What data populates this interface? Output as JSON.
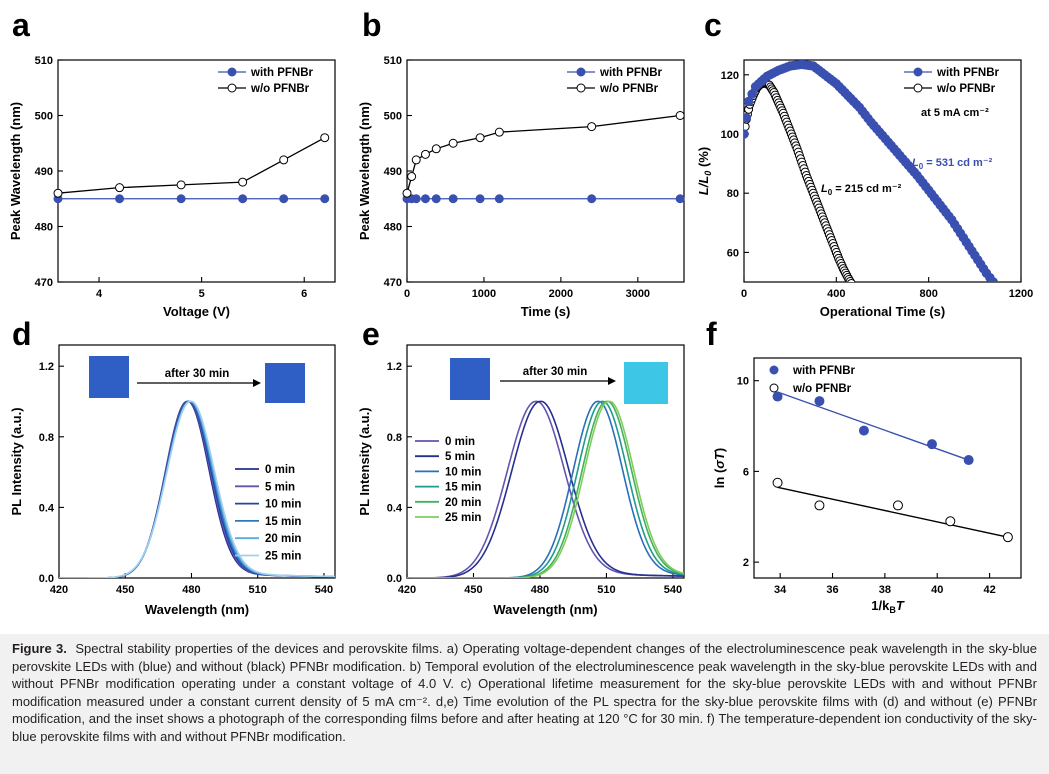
{
  "figure": {
    "caption_label": "Figure 3.",
    "caption_text": "Spectral stability properties of the devices and perovskite films. a) Operating voltage-dependent changes of the electroluminescence peak wavelength in the sky-blue perovskite LEDs with (blue) and without (black) PFNBr modification. b) Temporal evolution of the electroluminescence peak wavelength in the sky-blue perovskite LEDs with and without PFNBr modification operating under a constant voltage of 4.0 V. c) Operational lifetime measurement for the sky-blue perovskite LEDs with and without PFNBr modification measured under a constant current density of 5 mA cm⁻². d,e) Time evolution of the PL spectra for the sky-blue perovskite films with (d) and without (e) PFNBr modification, and the inset shows a photograph of the corresponding films before and after heating at 120 °C for 30 min. f) The temperature-dependent ion conductivity of the sky-blue perovskite films with and without PFNBr modification."
  },
  "colors": {
    "blue": "#3a50b0",
    "black": "#000000",
    "film_blue": "#2f5ec4",
    "film_cyan": "#3ec6e6"
  },
  "chart_data": [
    {
      "panel": "a",
      "type": "line",
      "xlabel": "Voltage (V)",
      "ylabel": "Peak Wavelength (nm)",
      "xlim": [
        3.6,
        6.3
      ],
      "ylim": [
        470,
        510
      ],
      "xticks": [
        4,
        5,
        6
      ],
      "yticks": [
        470,
        480,
        490,
        500,
        510
      ],
      "legend_position": "top-right",
      "series": [
        {
          "name": "with PFNBr",
          "marker": "filled",
          "color": "#3a50b0",
          "x": [
            3.6,
            4.2,
            4.8,
            5.4,
            5.8,
            6.2
          ],
          "y": [
            485,
            485,
            485,
            485,
            485,
            485
          ]
        },
        {
          "name": "w/o PFNBr",
          "marker": "open",
          "color": "#000000",
          "x": [
            3.6,
            4.2,
            4.8,
            5.4,
            5.8,
            6.2
          ],
          "y": [
            486,
            487,
            487.5,
            488,
            492,
            496
          ]
        }
      ]
    },
    {
      "panel": "b",
      "type": "line",
      "xlabel": "Time (s)",
      "ylabel": "Peak Wavelength (nm)",
      "xlim": [
        0,
        3600
      ],
      "ylim": [
        470,
        510
      ],
      "xticks": [
        0,
        1000,
        2000,
        3000
      ],
      "yticks": [
        470,
        480,
        490,
        500,
        510
      ],
      "legend_position": "top-right",
      "series": [
        {
          "name": "with PFNBr",
          "marker": "filled",
          "color": "#3a50b0",
          "x": [
            0,
            60,
            120,
            240,
            380,
            600,
            950,
            1200,
            2400,
            3550
          ],
          "y": [
            485,
            485,
            485,
            485,
            485,
            485,
            485,
            485,
            485,
            485
          ]
        },
        {
          "name": "w/o PFNBr",
          "marker": "open",
          "color": "#000000",
          "x": [
            0,
            60,
            120,
            240,
            380,
            600,
            950,
            1200,
            2400,
            3550
          ],
          "y": [
            486,
            489,
            492,
            493,
            494,
            495,
            496,
            497,
            498,
            500
          ]
        }
      ]
    },
    {
      "panel": "c",
      "type": "scatter",
      "xlabel": "Operational Time (s)",
      "ylabel": "L/L0 (%)",
      "xlim": [
        0,
        1200
      ],
      "ylim": [
        50,
        125
      ],
      "xticks": [
        0,
        400,
        800,
        1200
      ],
      "yticks": [
        60,
        80,
        100,
        120
      ],
      "legend_position": "top-right",
      "annotations": {
        "condition": "at 5 mA cm⁻²",
        "with_label": "= 531 cd m⁻²",
        "wo_label": "= 215 cd m⁻²"
      },
      "series": [
        {
          "name": "with PFNBr",
          "marker": "filled",
          "color": "#3a50b0",
          "x": [
            0,
            20,
            50,
            100,
            150,
            200,
            250,
            300,
            350,
            400,
            450,
            500,
            550,
            600,
            650,
            700,
            750,
            800,
            850,
            900,
            950,
            1000,
            1050,
            1080
          ],
          "y": [
            100,
            111,
            116,
            119.5,
            121.5,
            123,
            123.5,
            123,
            120,
            117,
            113,
            109,
            104,
            99.5,
            95,
            90.5,
            86,
            81,
            76,
            71,
            65,
            59,
            53,
            50
          ]
        },
        {
          "name": "w/o PFNBr",
          "marker": "open",
          "color": "#000000",
          "x": [
            0,
            10,
            25,
            40,
            55,
            70,
            90,
            110,
            130,
            150,
            170,
            190,
            210,
            230,
            250,
            270,
            290,
            310,
            330,
            350,
            370,
            390,
            410,
            430,
            450,
            465
          ],
          "y": [
            100,
            105,
            110,
            113,
            115.5,
            116.8,
            117.3,
            116.5,
            114,
            110.5,
            107,
            103,
            99,
            95,
            90.5,
            86,
            82,
            78,
            74,
            70,
            66,
            62,
            58,
            54.5,
            51.5,
            49.5
          ]
        }
      ]
    },
    {
      "panel": "d",
      "type": "line",
      "xlabel": "Wavelength (nm)",
      "ylabel": "PL Intensity (a.u.)",
      "xlim": [
        420,
        545
      ],
      "ylim": [
        0,
        1.32
      ],
      "xticks": [
        420,
        450,
        480,
        510,
        540
      ],
      "yticks": [
        0.0,
        0.4,
        0.8,
        1.2
      ],
      "legend_position": "bottom-right",
      "inset_label": "after 30 min",
      "series": [
        {
          "name": "0 min",
          "peak": 478,
          "fwhm": 23,
          "color": "#25318f"
        },
        {
          "name": "5 min",
          "peak": 478.3,
          "fwhm": 23.3,
          "color": "#6553b0"
        },
        {
          "name": "10 min",
          "peak": 478.6,
          "fwhm": 23.6,
          "color": "#2346a6"
        },
        {
          "name": "15 min",
          "peak": 478.9,
          "fwhm": 24,
          "color": "#2a7bbe"
        },
        {
          "name": "20 min",
          "peak": 479.2,
          "fwhm": 24.4,
          "color": "#5aa9dd"
        },
        {
          "name": "25 min",
          "peak": 479.5,
          "fwhm": 24.8,
          "color": "#9fd0ee"
        }
      ]
    },
    {
      "panel": "e",
      "type": "line",
      "xlabel": "Wavelength (nm)",
      "ylabel": "PL Intensity (a.u.)",
      "xlim": [
        420,
        545
      ],
      "ylim": [
        0,
        1.32
      ],
      "xticks": [
        420,
        450,
        480,
        510,
        540
      ],
      "yticks": [
        0.0,
        0.4,
        0.8,
        1.2
      ],
      "legend_position": "left",
      "inset_label": "after 30 min",
      "series": [
        {
          "name": "0 min",
          "peak": 478,
          "fwhm": 30,
          "color": "#6553b0"
        },
        {
          "name": "5 min",
          "peak": 480,
          "fwhm": 30,
          "color": "#25318f"
        },
        {
          "name": "10 min",
          "peak": 506,
          "fwhm": 26,
          "color": "#2a6fbb"
        },
        {
          "name": "15 min",
          "peak": 508,
          "fwhm": 26,
          "color": "#1f9a8c"
        },
        {
          "name": "20 min",
          "peak": 510,
          "fwhm": 26,
          "color": "#43b05c"
        },
        {
          "name": "25 min",
          "peak": 511,
          "fwhm": 26,
          "color": "#7fce5a"
        }
      ]
    },
    {
      "panel": "f",
      "type": "scatter",
      "xlabel": "1/kBT",
      "ylabel": "ln (σT)",
      "xlim": [
        33,
        43.2
      ],
      "ylim": [
        1.3,
        11
      ],
      "xticks": [
        34,
        36,
        38,
        40,
        42
      ],
      "yticks": [
        2,
        6,
        10
      ],
      "legend_position": "top-left",
      "series": [
        {
          "name": "with PFNBr",
          "marker": "filled",
          "color": "#3a50b0",
          "x": [
            33.9,
            35.5,
            37.2,
            39.8,
            41.2
          ],
          "y": [
            9.3,
            9.1,
            7.8,
            7.2,
            6.5
          ],
          "fit": [
            [
              33.9,
              9.5
            ],
            [
              41.2,
              6.5
            ]
          ]
        },
        {
          "name": "w/o PFNBr",
          "marker": "open",
          "color": "#000000",
          "x": [
            33.9,
            35.5,
            38.5,
            40.5,
            42.7
          ],
          "y": [
            5.5,
            4.5,
            4.5,
            3.8,
            3.1
          ],
          "fit": [
            [
              33.9,
              5.3
            ],
            [
              42.7,
              3.1
            ]
          ]
        }
      ]
    }
  ]
}
